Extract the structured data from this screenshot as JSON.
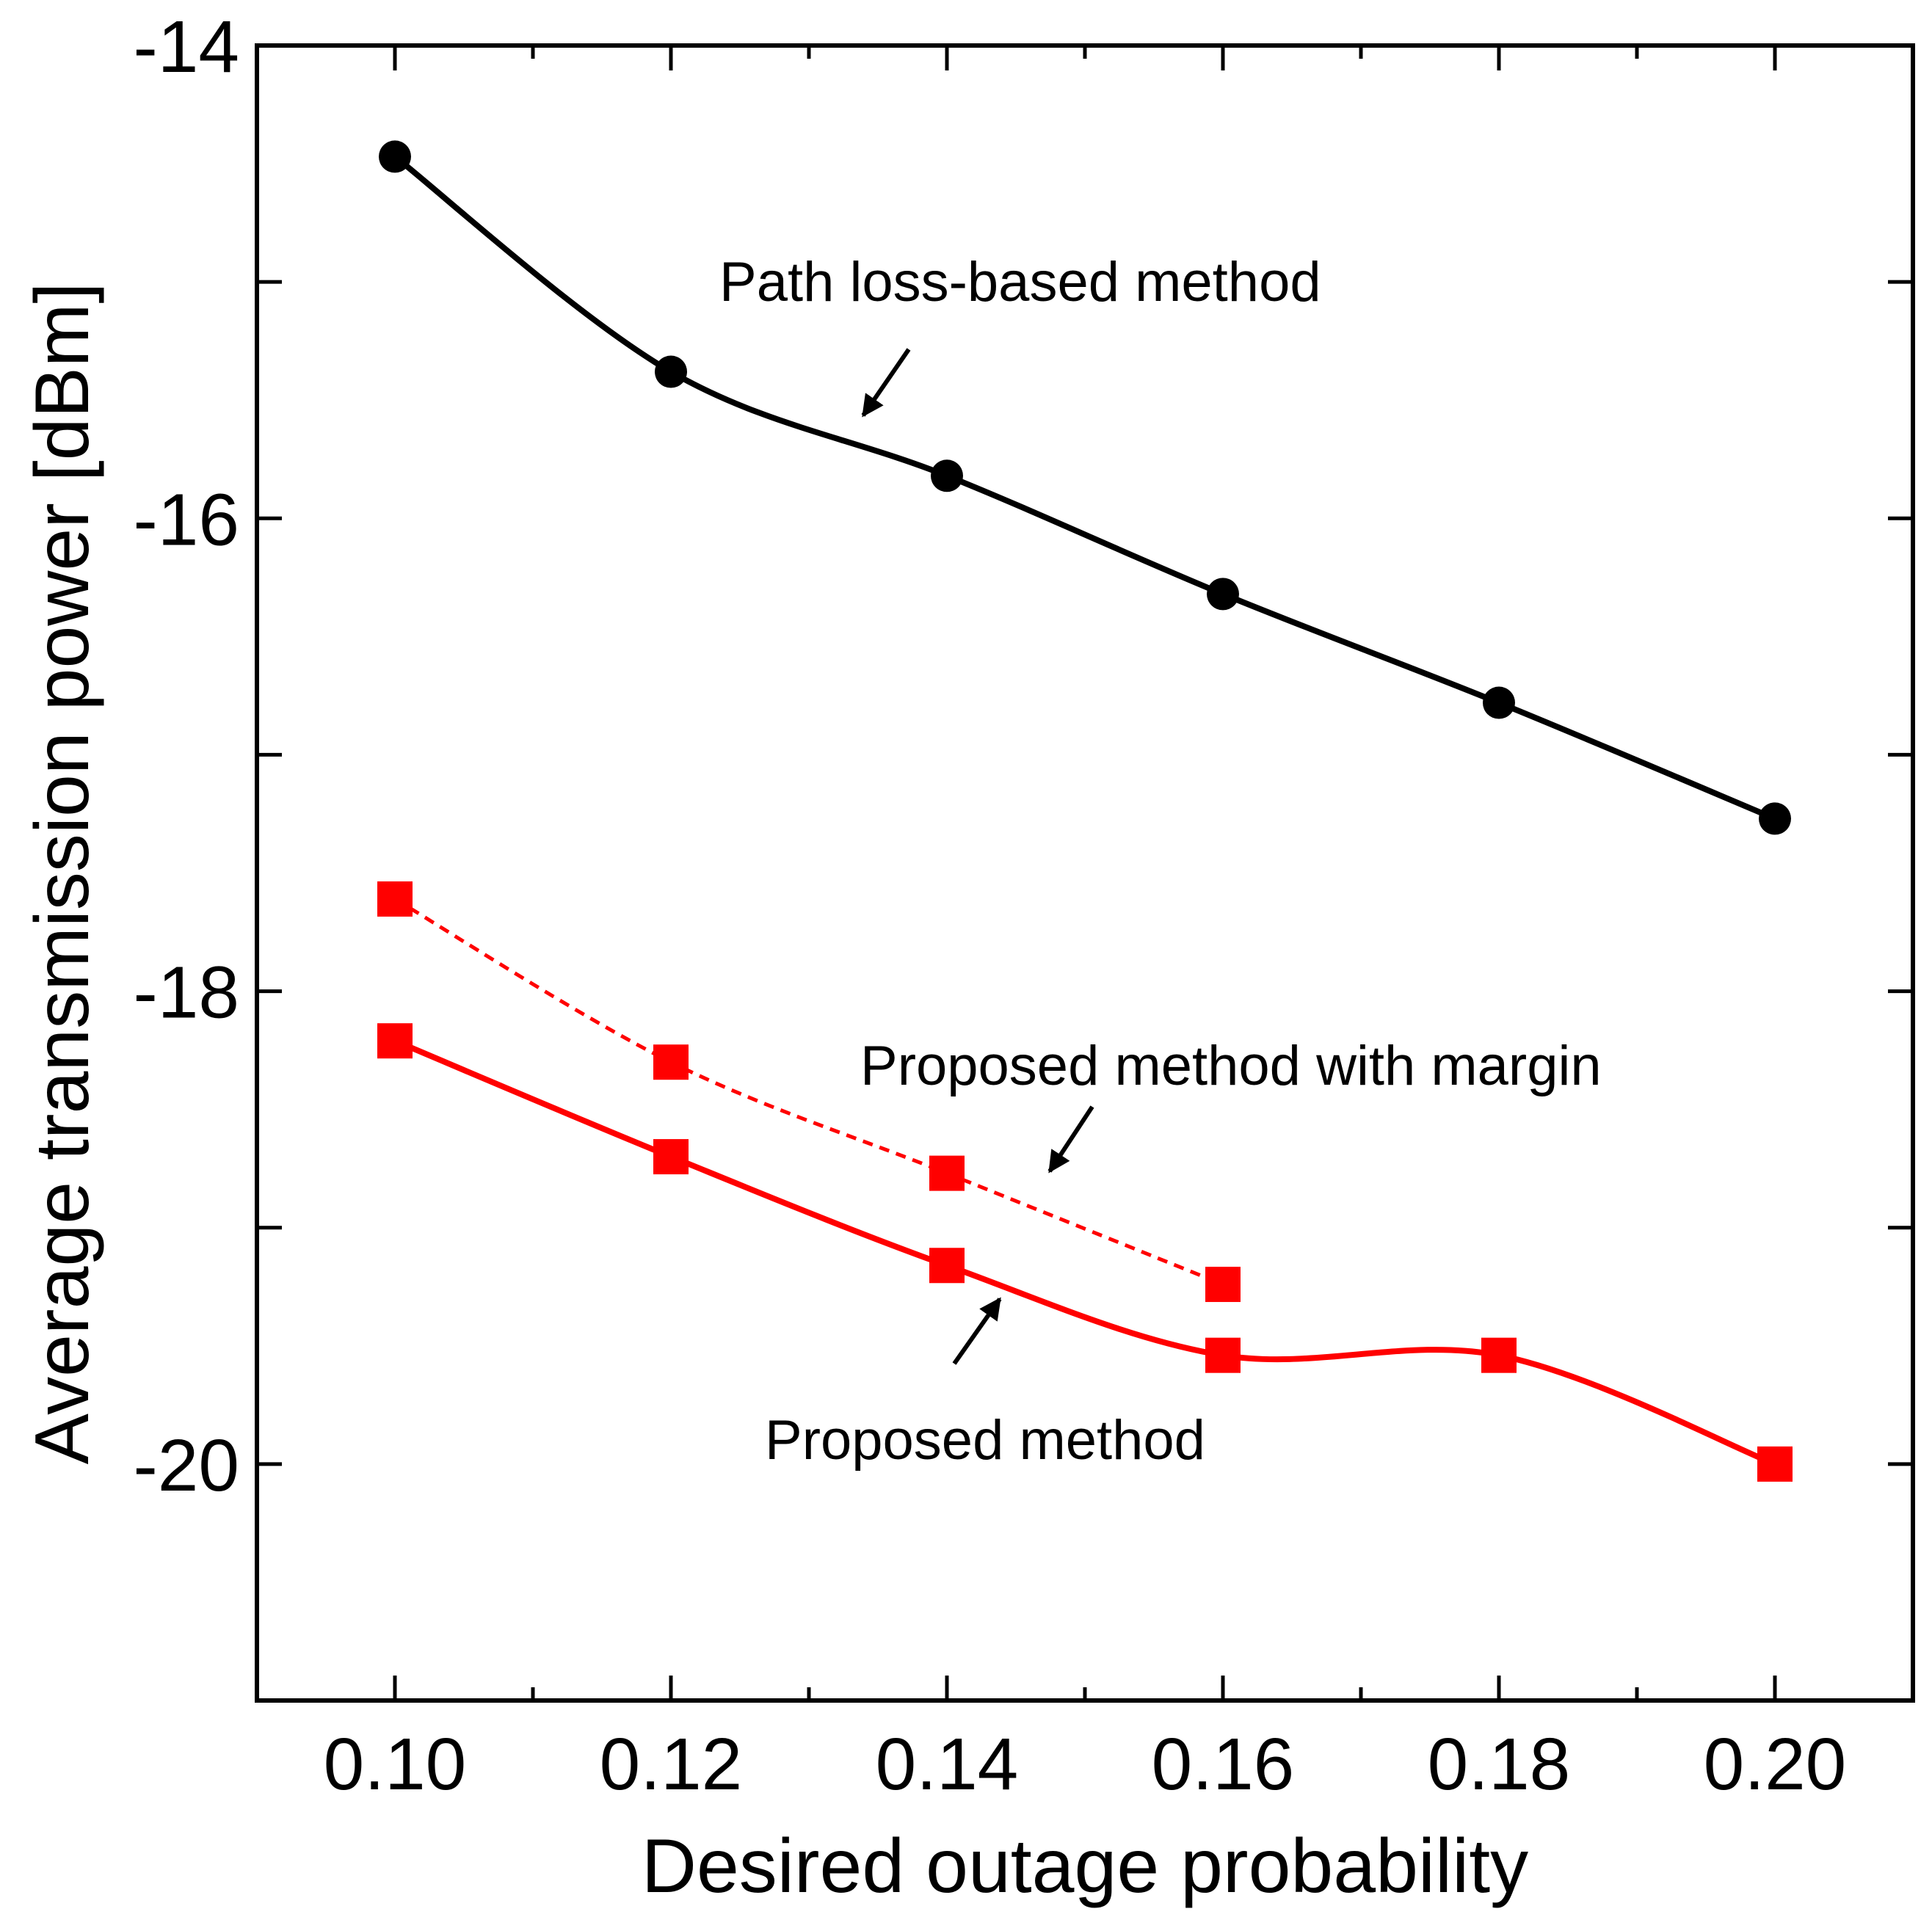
{
  "chart_data": {
    "type": "line",
    "title": "",
    "xlabel": "Desired outage probability",
    "ylabel": "Average transmission power [dBm]",
    "xlim": [
      0.09,
      0.21
    ],
    "ylim": [
      -21.0,
      -14.0
    ],
    "xticks": [
      0.1,
      0.12,
      0.14,
      0.16,
      0.18,
      0.2
    ],
    "xtick_labels": [
      "0.10",
      "0.12",
      "0.14",
      "0.16",
      "0.18",
      "0.20"
    ],
    "yticks": [
      -14,
      -16,
      -18,
      -20
    ],
    "ytick_labels": [
      "-14",
      "-16",
      "-18",
      "-20"
    ],
    "grid": false,
    "series": [
      {
        "name": "Path loss-based method",
        "color": "#000000",
        "marker": "circle",
        "line": "solid",
        "x": [
          0.1,
          0.12,
          0.14,
          0.16,
          0.18,
          0.2
        ],
        "y": [
          -14.47,
          -15.38,
          -15.82,
          -16.32,
          -16.78,
          -17.27
        ]
      },
      {
        "name": "Proposed method with margin",
        "color": "#ff0000",
        "marker": "square",
        "line": "dashed",
        "x": [
          0.1,
          0.12,
          0.14,
          0.16
        ],
        "y": [
          -17.61,
          -18.3,
          -18.77,
          -19.24
        ]
      },
      {
        "name": "Proposed method",
        "color": "#ff0000",
        "marker": "square",
        "line": "solid",
        "x": [
          0.1,
          0.12,
          0.14,
          0.16,
          0.18,
          0.2
        ],
        "y": [
          -18.21,
          -18.7,
          -19.16,
          -19.54,
          -19.54,
          -20.0
        ]
      }
    ],
    "annotations": [
      {
        "text": "Path loss-based method",
        "series": 0
      },
      {
        "text": "Proposed method with margin",
        "series": 1
      },
      {
        "text": "Proposed method",
        "series": 2
      }
    ]
  }
}
